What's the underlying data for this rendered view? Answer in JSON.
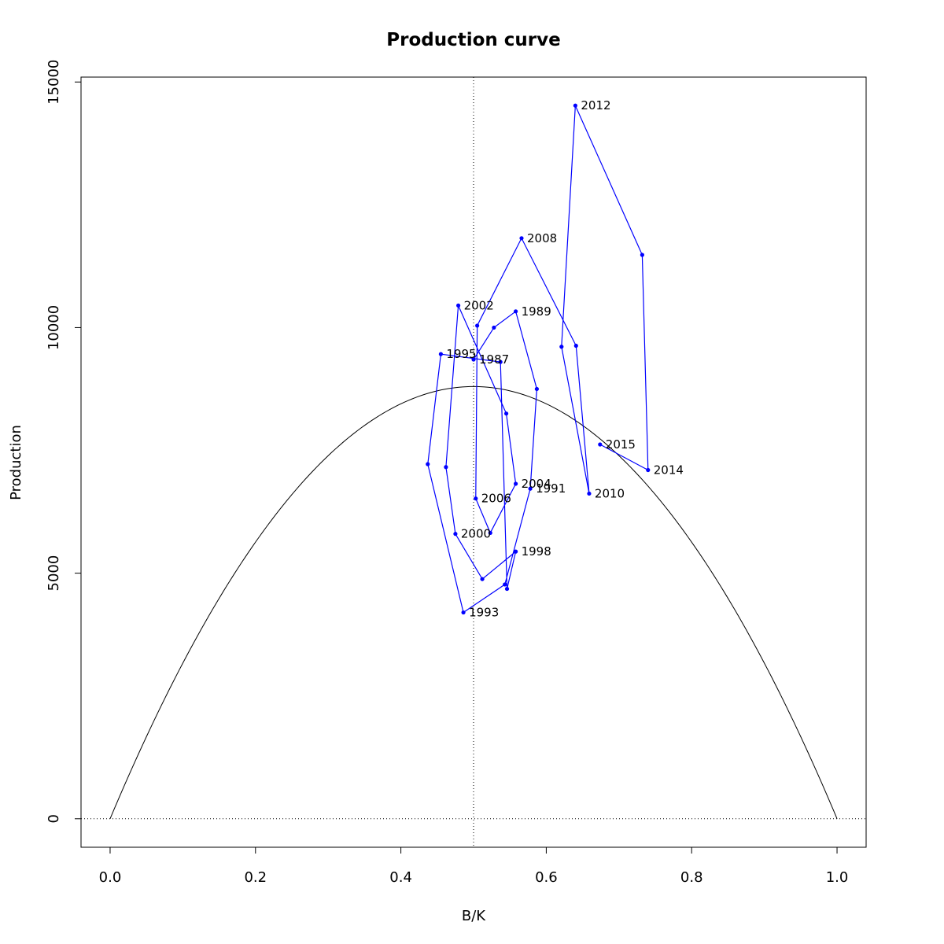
{
  "chart_data": {
    "type": "line",
    "title": "Production curve",
    "xlabel": "B/K",
    "ylabel": "Production",
    "xlim": [
      -0.04,
      1.04
    ],
    "ylim": [
      -580,
      15100
    ],
    "x_ticks": [
      0.0,
      0.2,
      0.4,
      0.6,
      0.8,
      1.0
    ],
    "x_tick_labels": [
      "0.0",
      "0.2",
      "0.4",
      "0.6",
      "0.8",
      "1.0"
    ],
    "y_ticks": [
      0,
      5000,
      10000,
      15000
    ],
    "y_tick_labels": [
      "0",
      "5000",
      "10000",
      "15000"
    ],
    "reference_lines": {
      "vertical_x": 0.5,
      "horizontal_y": 0,
      "style": "dotted"
    },
    "curve": {
      "type": "parabola",
      "formula": "4*MSY*x*(1-x)",
      "msy": 8800,
      "color": "#000000"
    },
    "series": [
      {
        "color": "#0000ff",
        "points": [
          {
            "year": "1987",
            "x": 0.5,
            "y": 9350
          },
          {
            "year": "",
            "x": 0.528,
            "y": 10000
          },
          {
            "year": "1989",
            "x": 0.558,
            "y": 10330
          },
          {
            "year": "",
            "x": 0.587,
            "y": 8750
          },
          {
            "year": "1991",
            "x": 0.578,
            "y": 6720
          },
          {
            "year": "",
            "x": 0.543,
            "y": 4770
          },
          {
            "year": "1993",
            "x": 0.486,
            "y": 4200
          },
          {
            "year": "",
            "x": 0.437,
            "y": 7220
          },
          {
            "year": "1995",
            "x": 0.455,
            "y": 9460
          },
          {
            "year": "",
            "x": 0.537,
            "y": 9300
          },
          {
            "year": "",
            "x": 0.546,
            "y": 4680
          },
          {
            "year": "1998",
            "x": 0.558,
            "y": 5440
          },
          {
            "year": "",
            "x": 0.512,
            "y": 4880
          },
          {
            "year": "2000",
            "x": 0.475,
            "y": 5800
          },
          {
            "year": "",
            "x": 0.462,
            "y": 7160
          },
          {
            "year": "2002",
            "x": 0.479,
            "y": 10450
          },
          {
            "year": "",
            "x": 0.545,
            "y": 8250
          },
          {
            "year": "2004",
            "x": 0.558,
            "y": 6820
          },
          {
            "year": "",
            "x": 0.523,
            "y": 5820
          },
          {
            "year": "2006",
            "x": 0.503,
            "y": 6520
          },
          {
            "year": "",
            "x": 0.505,
            "y": 10040
          },
          {
            "year": "2008",
            "x": 0.566,
            "y": 11820
          },
          {
            "year": "",
            "x": 0.641,
            "y": 9630
          },
          {
            "year": "2010",
            "x": 0.659,
            "y": 6620
          },
          {
            "year": "",
            "x": 0.621,
            "y": 9610
          },
          {
            "year": "2012",
            "x": 0.64,
            "y": 14520
          },
          {
            "year": "",
            "x": 0.732,
            "y": 11480
          },
          {
            "year": "2014",
            "x": 0.74,
            "y": 7100
          },
          {
            "year": "2015",
            "x": 0.674,
            "y": 7620
          }
        ]
      }
    ]
  }
}
